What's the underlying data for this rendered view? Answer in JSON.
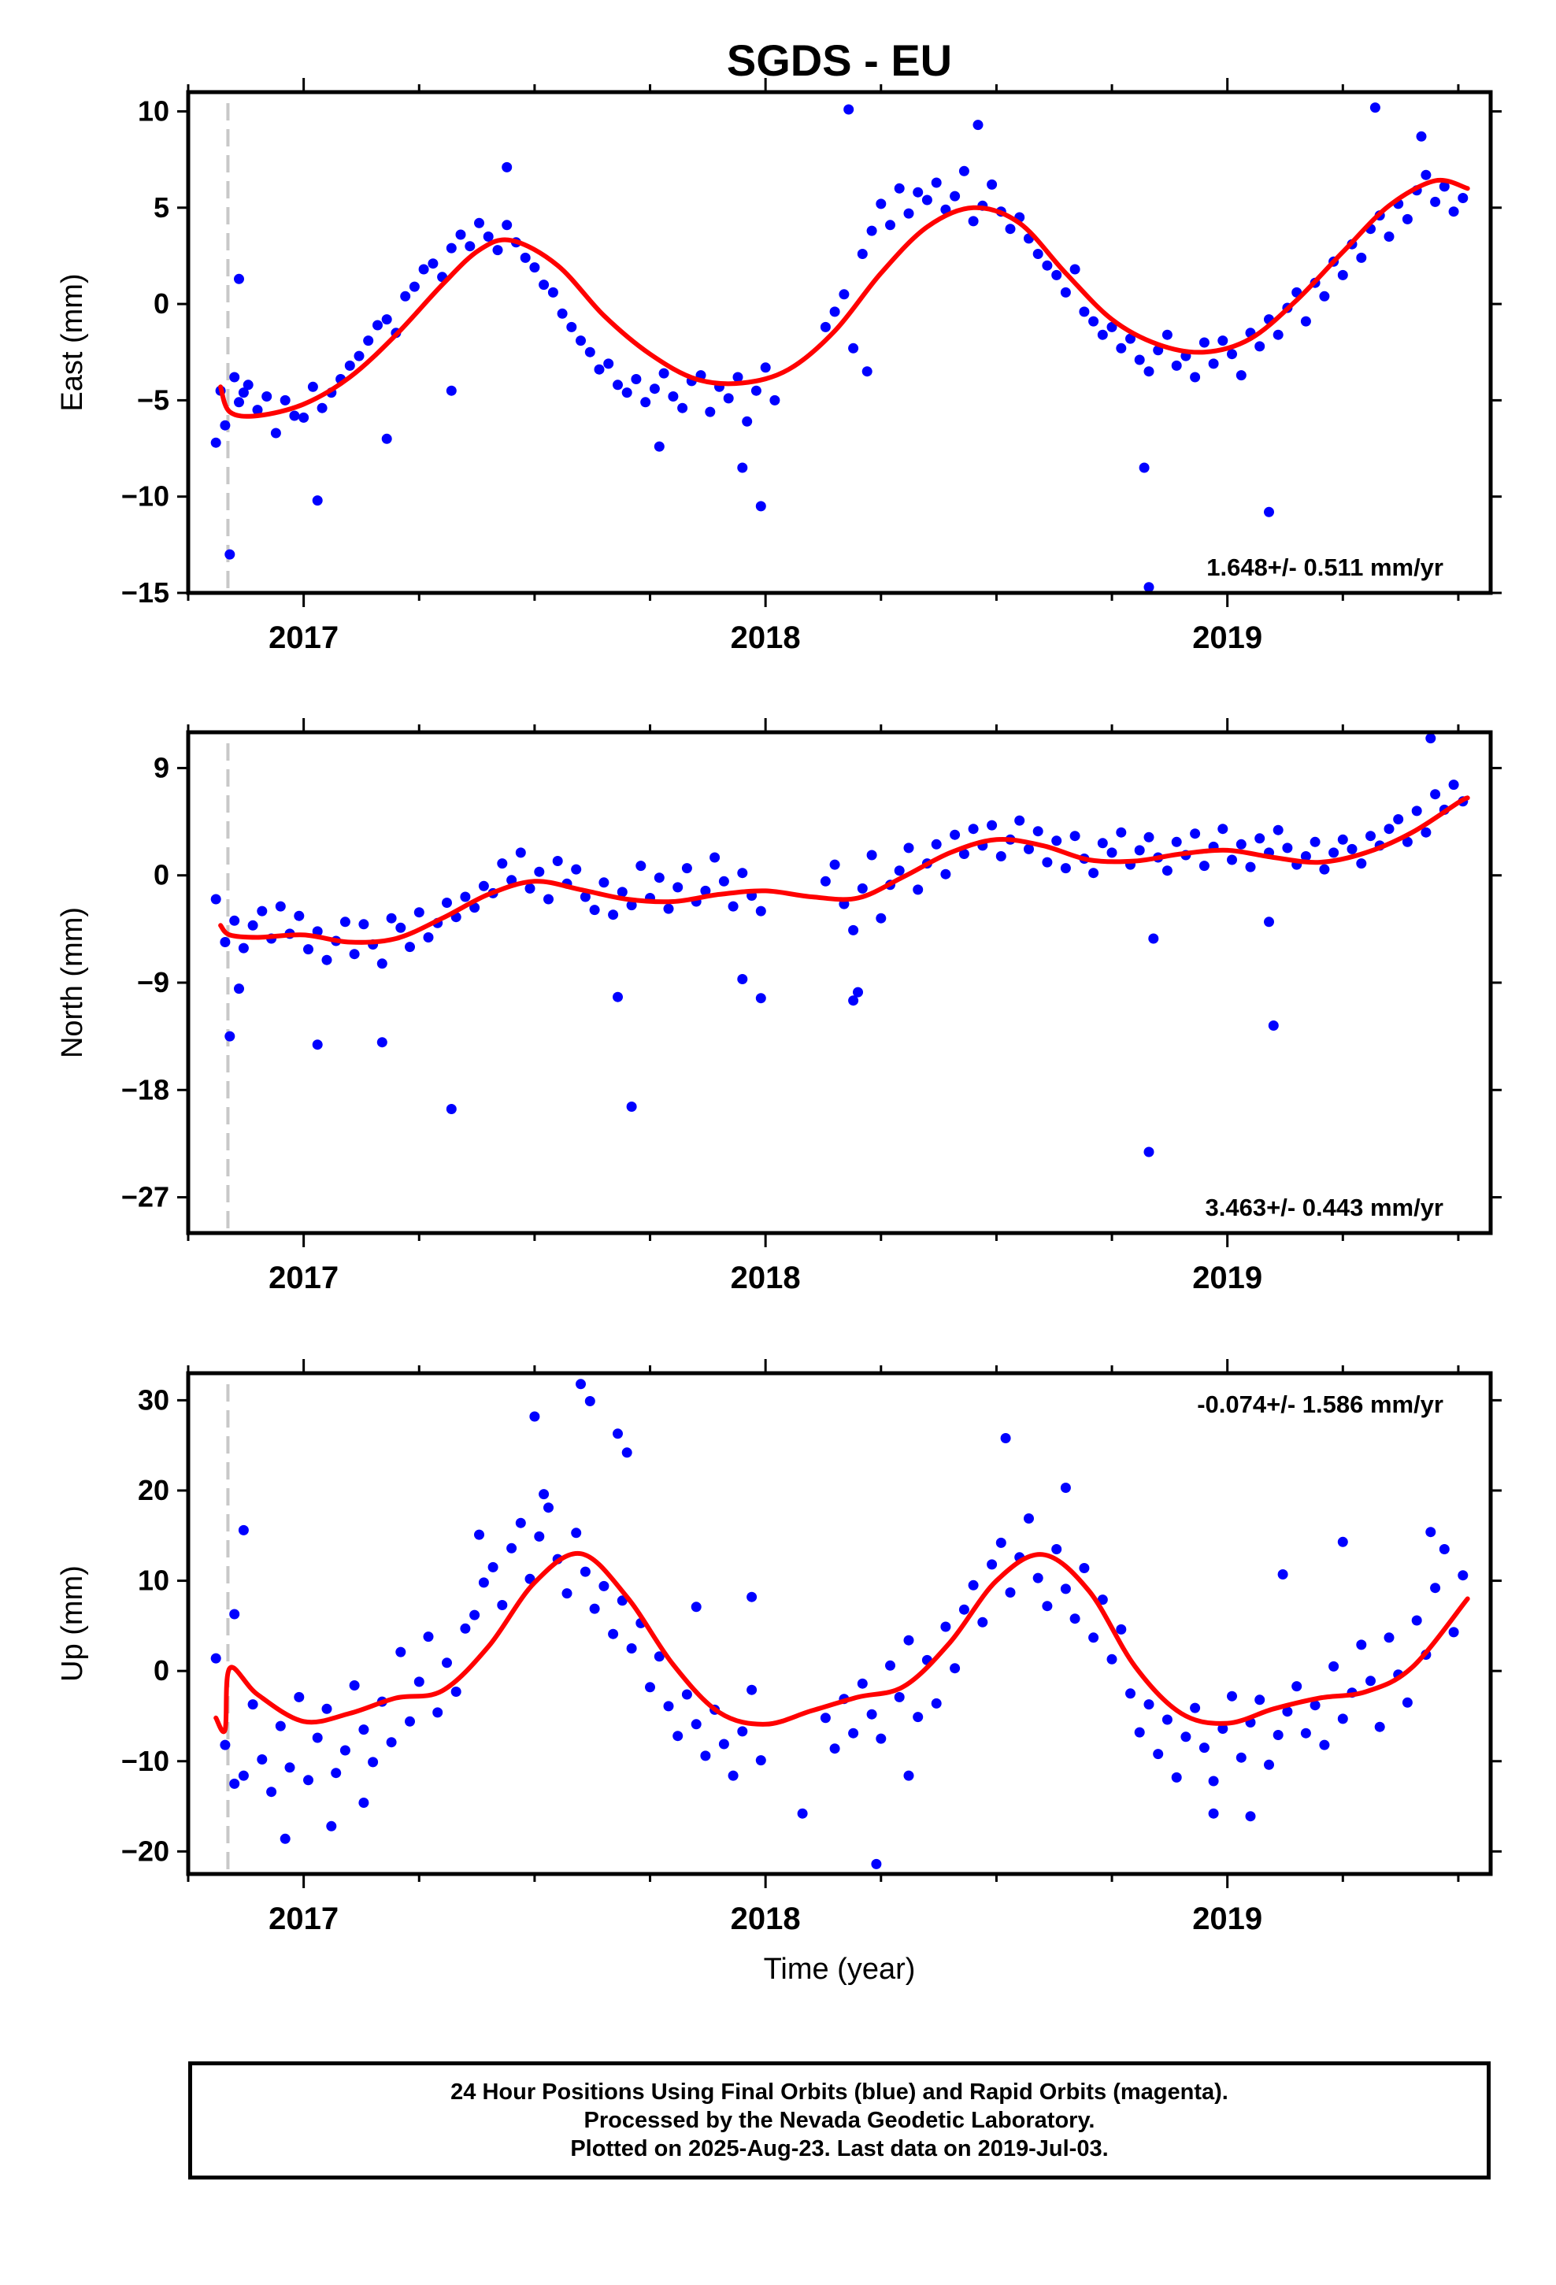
{
  "title": "SGDS - EU",
  "xlabel": "Time (year)",
  "footer": {
    "line1": "24 Hour Positions Using Final Orbits (blue) and Rapid Orbits (magenta).",
    "line2": "Processed by the Nevada Geodetic Laboratory.",
    "line3": "Plotted on 2025-Aug-23. Last data on 2019-Jul-03."
  },
  "colors": {
    "points": "#0000ff",
    "fit": "#ff0000",
    "marker_line": "#c8c8c8",
    "frame": "#000000"
  },
  "chart_data": [
    {
      "type": "scatter",
      "ylabel": "East (mm)",
      "ylim": [
        -15,
        11
      ],
      "yticks": [
        10,
        5,
        0,
        -5,
        -10,
        -15
      ],
      "ytick_labels": [
        "10",
        "5",
        "0",
        "−5",
        "−10",
        "−15"
      ],
      "xlim": [
        2016.75,
        2019.57
      ],
      "xticks": [
        2017,
        2018,
        2019
      ],
      "xtick_labels": [
        "2017",
        "2018",
        "2019"
      ],
      "rate_label": "1.648+/- 0.511 mm/yr",
      "rate_position": "bottom-right",
      "marker_x": 2016.836,
      "fit": {
        "name": "",
        "x": [
          2016.82,
          2016.84,
          2016.9,
          2017.0,
          2017.1,
          2017.2,
          2017.3,
          2017.38,
          2017.45,
          2017.55,
          2017.65,
          2017.75,
          2017.85,
          2017.95,
          2018.05,
          2018.15,
          2018.25,
          2018.35,
          2018.45,
          2018.55,
          2018.65,
          2018.75,
          2018.85,
          2018.95,
          2019.05,
          2019.15,
          2019.25,
          2019.35,
          2019.45,
          2019.52
        ],
        "y": [
          -4.3,
          -5.6,
          -5.8,
          -5.2,
          -3.8,
          -1.6,
          1.0,
          2.8,
          3.3,
          2.0,
          -0.6,
          -2.6,
          -3.9,
          -4.1,
          -3.4,
          -1.4,
          1.6,
          4.0,
          5.0,
          4.2,
          1.6,
          -0.8,
          -2.1,
          -2.5,
          -1.8,
          0.2,
          2.7,
          5.1,
          6.4,
          6.0
        ]
      },
      "points_x": [
        2016.81,
        2016.82,
        2016.83,
        2016.85,
        2016.86,
        2016.87,
        2016.88,
        2016.9,
        2016.92,
        2016.94,
        2016.96,
        2016.98,
        2017.0,
        2017.02,
        2017.04,
        2017.06,
        2017.08,
        2017.1,
        2017.12,
        2017.14,
        2017.16,
        2017.18,
        2017.2,
        2017.22,
        2017.24,
        2017.26,
        2017.28,
        2017.3,
        2017.32,
        2017.34,
        2017.36,
        2017.38,
        2017.4,
        2017.42,
        2017.44,
        2017.46,
        2017.48,
        2017.5,
        2017.52,
        2017.54,
        2017.56,
        2017.58,
        2017.6,
        2017.62,
        2017.64,
        2017.66,
        2017.68,
        2017.7,
        2017.72,
        2017.74,
        2017.76,
        2017.78,
        2017.8,
        2017.82,
        2017.84,
        2017.86,
        2017.88,
        2017.9,
        2017.92,
        2017.94,
        2017.96,
        2017.98,
        2018.0,
        2018.02,
        2018.13,
        2018.15,
        2018.17,
        2018.19,
        2018.21,
        2018.23,
        2018.25,
        2018.27,
        2018.29,
        2018.31,
        2018.33,
        2018.35,
        2018.37,
        2018.39,
        2018.41,
        2018.43,
        2018.45,
        2018.47,
        2018.49,
        2018.51,
        2018.53,
        2018.55,
        2018.57,
        2018.59,
        2018.61,
        2018.63,
        2018.65,
        2018.67,
        2018.69,
        2018.71,
        2018.73,
        2018.75,
        2018.77,
        2018.79,
        2018.81,
        2018.83,
        2018.85,
        2018.87,
        2018.89,
        2018.91,
        2018.93,
        2018.95,
        2018.97,
        2018.99,
        2019.01,
        2019.03,
        2019.05,
        2019.07,
        2019.09,
        2019.11,
        2019.13,
        2019.15,
        2019.17,
        2019.19,
        2019.21,
        2019.23,
        2019.25,
        2019.27,
        2019.29,
        2019.31,
        2019.33,
        2019.35,
        2019.37,
        2019.39,
        2019.41,
        2019.43,
        2019.45,
        2019.47,
        2019.49,
        2019.51,
        2016.84,
        2016.86,
        2017.03,
        2017.18,
        2017.32,
        2017.44,
        2017.77,
        2017.95,
        2017.99,
        2018.18,
        2018.22,
        2018.46,
        2018.82,
        2018.83,
        2019.09,
        2019.32,
        2019.42
      ],
      "points_y": [
        -7.2,
        -4.5,
        -6.3,
        -3.8,
        -5.1,
        -4.6,
        -4.2,
        -5.5,
        -4.8,
        -6.7,
        -5.0,
        -5.8,
        -5.9,
        -4.3,
        -5.4,
        -4.6,
        -3.9,
        -3.2,
        -2.7,
        -1.9,
        -1.1,
        -0.8,
        -1.5,
        0.4,
        0.9,
        1.8,
        2.1,
        1.4,
        2.9,
        3.6,
        3.0,
        4.2,
        3.5,
        2.8,
        4.1,
        3.2,
        2.4,
        1.9,
        1.0,
        0.6,
        -0.5,
        -1.2,
        -1.9,
        -2.5,
        -3.4,
        -3.1,
        -4.2,
        -4.6,
        -3.9,
        -5.1,
        -4.4,
        -3.6,
        -4.8,
        -5.4,
        -4.0,
        -3.7,
        -5.6,
        -4.3,
        -4.9,
        -3.8,
        -6.1,
        -4.5,
        -3.3,
        -5.0,
        -1.2,
        -0.4,
        0.5,
        -2.3,
        2.6,
        3.8,
        5.2,
        4.1,
        6.0,
        4.7,
        5.8,
        5.4,
        6.3,
        4.9,
        5.6,
        6.9,
        4.3,
        5.1,
        6.2,
        4.8,
        3.9,
        4.5,
        3.4,
        2.6,
        2.0,
        1.5,
        0.6,
        1.8,
        -0.4,
        -0.9,
        -1.6,
        -1.2,
        -2.3,
        -1.8,
        -2.9,
        -3.5,
        -2.4,
        -1.6,
        -3.2,
        -2.7,
        -3.8,
        -2.0,
        -3.1,
        -1.9,
        -2.6,
        -3.7,
        -1.5,
        -2.2,
        -0.8,
        -1.6,
        -0.2,
        0.6,
        -0.9,
        1.1,
        0.4,
        2.2,
        1.5,
        3.1,
        2.4,
        3.9,
        4.6,
        3.5,
        5.2,
        4.4,
        5.9,
        6.7,
        5.3,
        6.1,
        4.8,
        5.5,
        -13.0,
        1.3,
        -10.2,
        -7.0,
        -4.5,
        7.1,
        -7.4,
        -8.5,
        -10.5,
        10.1,
        -3.5,
        9.3,
        -8.5,
        -14.7,
        -10.8,
        10.2,
        8.7
      ]
    },
    {
      "type": "scatter",
      "ylabel": "North (mm)",
      "ylim": [
        -30,
        12
      ],
      "yticks": [
        9,
        0,
        -9,
        -18,
        -27
      ],
      "ytick_labels": [
        "9",
        "0",
        "−9",
        "−18",
        "−27"
      ],
      "xlim": [
        2016.75,
        2019.57
      ],
      "xticks": [
        2017,
        2018,
        2019
      ],
      "xtick_labels": [
        "2017",
        "2018",
        "2019"
      ],
      "rate_label": "3.463+/- 0.443 mm/yr",
      "rate_position": "bottom-right",
      "marker_x": 2016.836,
      "fit": {
        "name": "",
        "x": [
          2016.82,
          2016.84,
          2016.9,
          2017.0,
          2017.1,
          2017.2,
          2017.3,
          2017.4,
          2017.5,
          2017.6,
          2017.7,
          2017.8,
          2017.9,
          2018.0,
          2018.1,
          2018.2,
          2018.3,
          2018.4,
          2018.5,
          2018.6,
          2018.7,
          2018.8,
          2018.9,
          2019.0,
          2019.1,
          2019.2,
          2019.3,
          2019.4,
          2019.5,
          2019.52
        ],
        "y": [
          -4.2,
          -5.0,
          -5.2,
          -5.0,
          -5.6,
          -5.3,
          -3.6,
          -1.6,
          -0.5,
          -1.2,
          -2.0,
          -2.2,
          -1.6,
          -1.3,
          -1.8,
          -1.9,
          -0.1,
          1.9,
          3.0,
          2.5,
          1.3,
          1.2,
          1.8,
          2.1,
          1.5,
          1.1,
          1.9,
          3.6,
          6.1,
          6.5
        ]
      },
      "points_x": [
        2016.81,
        2016.83,
        2016.85,
        2016.87,
        2016.89,
        2016.91,
        2016.93,
        2016.95,
        2016.97,
        2016.99,
        2017.01,
        2017.03,
        2017.05,
        2017.07,
        2017.09,
        2017.11,
        2017.13,
        2017.15,
        2017.17,
        2017.19,
        2017.21,
        2017.23,
        2017.25,
        2017.27,
        2017.29,
        2017.31,
        2017.33,
        2017.35,
        2017.37,
        2017.39,
        2017.41,
        2017.43,
        2017.45,
        2017.47,
        2017.49,
        2017.51,
        2017.53,
        2017.55,
        2017.57,
        2017.59,
        2017.61,
        2017.63,
        2017.65,
        2017.67,
        2017.69,
        2017.71,
        2017.73,
        2017.75,
        2017.77,
        2017.79,
        2017.81,
        2017.83,
        2017.85,
        2017.87,
        2017.89,
        2017.91,
        2017.93,
        2017.95,
        2017.97,
        2017.99,
        2018.13,
        2018.15,
        2018.17,
        2018.19,
        2018.21,
        2018.23,
        2018.25,
        2018.27,
        2018.29,
        2018.31,
        2018.33,
        2018.35,
        2018.37,
        2018.39,
        2018.41,
        2018.43,
        2018.45,
        2018.47,
        2018.49,
        2018.51,
        2018.53,
        2018.55,
        2018.57,
        2018.59,
        2018.61,
        2018.63,
        2018.65,
        2018.67,
        2018.69,
        2018.71,
        2018.73,
        2018.75,
        2018.77,
        2018.79,
        2018.81,
        2018.83,
        2018.85,
        2018.87,
        2018.89,
        2018.91,
        2018.93,
        2018.95,
        2018.97,
        2018.99,
        2019.01,
        2019.03,
        2019.05,
        2019.07,
        2019.09,
        2019.11,
        2019.13,
        2019.15,
        2019.17,
        2019.19,
        2019.21,
        2019.23,
        2019.25,
        2019.27,
        2019.29,
        2019.31,
        2019.33,
        2019.35,
        2019.37,
        2019.39,
        2019.41,
        2019.43,
        2019.45,
        2019.47,
        2019.49,
        2019.51,
        2016.84,
        2016.86,
        2017.03,
        2017.17,
        2017.32,
        2017.68,
        2017.71,
        2017.95,
        2017.99,
        2018.19,
        2018.2,
        2018.83,
        2018.84,
        2019.09,
        2019.1,
        2019.44
      ],
      "points_y": [
        -2.0,
        -5.6,
        -3.8,
        -6.1,
        -4.2,
        -3.0,
        -5.3,
        -2.6,
        -4.9,
        -3.4,
        -6.2,
        -4.7,
        -7.1,
        -5.5,
        -3.9,
        -6.6,
        -4.1,
        -5.8,
        -7.4,
        -3.6,
        -4.4,
        -6.0,
        -3.1,
        -5.2,
        -4.0,
        -2.3,
        -3.5,
        -1.8,
        -2.7,
        -0.9,
        -1.5,
        1.0,
        -0.4,
        1.9,
        -1.1,
        0.3,
        -2.0,
        1.2,
        -0.7,
        0.5,
        -1.8,
        -2.9,
        -0.6,
        -3.3,
        -1.4,
        -2.5,
        0.8,
        -1.9,
        -0.2,
        -2.8,
        -1.0,
        0.6,
        -2.2,
        -1.3,
        1.5,
        -0.5,
        -2.6,
        0.2,
        -1.7,
        -3.0,
        -0.5,
        0.9,
        -2.4,
        -4.6,
        -1.1,
        1.7,
        -3.6,
        -0.8,
        0.4,
        2.3,
        -1.2,
        1.0,
        2.6,
        0.1,
        3.4,
        1.8,
        3.9,
        2.5,
        4.2,
        1.6,
        3.0,
        4.6,
        2.2,
        3.7,
        1.1,
        2.9,
        0.6,
        3.3,
        1.4,
        0.2,
        2.7,
        1.9,
        3.6,
        0.9,
        2.1,
        3.2,
        1.5,
        0.4,
        2.8,
        1.7,
        3.5,
        0.8,
        2.4,
        3.9,
        1.3,
        2.6,
        0.7,
        3.1,
        1.9,
        3.8,
        2.3,
        0.9,
        1.6,
        2.8,
        0.5,
        1.9,
        3.0,
        2.2,
        1.0,
        3.3,
        2.5,
        3.9,
        4.7,
        2.8,
        5.4,
        3.6,
        6.8,
        5.5,
        7.6,
        6.2,
        -13.5,
        -9.5,
        -14.2,
        -14.0,
        -19.6,
        -10.2,
        -19.4,
        -8.7,
        -10.3,
        -10.5,
        -9.8,
        -23.2,
        -5.3,
        -3.9,
        -12.6,
        11.5
      ]
    },
    {
      "type": "scatter",
      "ylabel": "Up (mm)",
      "ylim": [
        -22.5,
        33
      ],
      "yticks": [
        30,
        20,
        10,
        0,
        -10,
        -20
      ],
      "ytick_labels": [
        "30",
        "20",
        "10",
        "0",
        "−10",
        "−20"
      ],
      "xlim": [
        2016.75,
        2019.57
      ],
      "xticks": [
        2017,
        2018,
        2019
      ],
      "xtick_labels": [
        "2017",
        "2018",
        "2019"
      ],
      "rate_label": "-0.074+/- 1.586 mm/yr",
      "rate_position": "top-right",
      "marker_x": 2016.836,
      "fit": {
        "name": "",
        "x": [
          2016.81,
          2016.83,
          2016.84,
          2016.9,
          2017.0,
          2017.1,
          2017.2,
          2017.3,
          2017.4,
          2017.5,
          2017.6,
          2017.7,
          2017.8,
          2017.9,
          2018.0,
          2018.1,
          2018.2,
          2018.3,
          2018.4,
          2018.5,
          2018.6,
          2018.7,
          2018.8,
          2018.9,
          2019.0,
          2019.1,
          2019.2,
          2019.3,
          2019.4,
          2019.52
        ],
        "y": [
          -5.2,
          -6.5,
          0.3,
          -2.6,
          -5.6,
          -4.7,
          -3.0,
          -2.2,
          2.7,
          9.8,
          13.0,
          8.2,
          0.7,
          -4.6,
          -5.9,
          -4.4,
          -2.9,
          -1.7,
          3.2,
          10.0,
          12.9,
          8.9,
          0.5,
          -4.7,
          -5.8,
          -4.2,
          -3.0,
          -2.3,
          0.4,
          8.0
        ]
      },
      "points_x": [
        2016.81,
        2016.83,
        2016.85,
        2016.87,
        2016.89,
        2016.91,
        2016.93,
        2016.95,
        2016.97,
        2016.99,
        2017.01,
        2017.03,
        2017.05,
        2017.07,
        2017.09,
        2017.11,
        2017.13,
        2017.15,
        2017.17,
        2017.19,
        2017.21,
        2017.23,
        2017.25,
        2017.27,
        2017.29,
        2017.31,
        2017.33,
        2017.35,
        2017.37,
        2017.39,
        2017.41,
        2017.43,
        2017.45,
        2017.47,
        2017.49,
        2017.51,
        2017.53,
        2017.55,
        2017.57,
        2017.59,
        2017.61,
        2017.63,
        2017.65,
        2017.67,
        2017.69,
        2017.71,
        2017.73,
        2017.75,
        2017.77,
        2017.79,
        2017.81,
        2017.83,
        2017.85,
        2017.87,
        2017.89,
        2017.91,
        2017.93,
        2017.95,
        2017.97,
        2017.99,
        2018.13,
        2018.15,
        2018.17,
        2018.19,
        2018.21,
        2018.23,
        2018.25,
        2018.27,
        2018.29,
        2018.31,
        2018.33,
        2018.35,
        2018.37,
        2018.39,
        2018.41,
        2018.43,
        2018.45,
        2018.47,
        2018.49,
        2018.51,
        2018.53,
        2018.55,
        2018.57,
        2018.59,
        2018.61,
        2018.63,
        2018.65,
        2018.67,
        2018.69,
        2018.71,
        2018.73,
        2018.75,
        2018.77,
        2018.79,
        2018.81,
        2018.83,
        2018.85,
        2018.87,
        2018.89,
        2018.91,
        2018.93,
        2018.95,
        2018.97,
        2018.99,
        2019.01,
        2019.03,
        2019.05,
        2019.07,
        2019.09,
        2019.11,
        2019.13,
        2019.15,
        2019.17,
        2019.19,
        2019.21,
        2019.23,
        2019.25,
        2019.27,
        2019.29,
        2019.31,
        2019.33,
        2019.35,
        2019.37,
        2019.39,
        2019.41,
        2019.43,
        2019.45,
        2019.47,
        2019.49,
        2019.51,
        2016.85,
        2016.87,
        2016.96,
        2017.06,
        2017.13,
        2017.38,
        2017.5,
        2017.52,
        2017.6,
        2017.62,
        2017.68,
        2017.7,
        2017.85,
        2017.97,
        2018.08,
        2018.24,
        2018.31,
        2018.52,
        2018.65,
        2018.97,
        2019.05,
        2019.12,
        2019.25,
        2019.44
      ],
      "points_y": [
        1.4,
        -8.2,
        6.3,
        -11.6,
        -3.7,
        -9.8,
        -13.4,
        -6.1,
        -10.7,
        -2.9,
        -12.1,
        -7.4,
        -4.2,
        -11.3,
        -8.8,
        -1.6,
        -6.5,
        -10.1,
        -3.4,
        -7.9,
        2.1,
        -5.6,
        -1.2,
        3.8,
        -4.6,
        0.9,
        -2.3,
        4.7,
        6.2,
        9.8,
        11.5,
        7.3,
        13.6,
        16.4,
        10.2,
        14.9,
        18.1,
        12.4,
        8.6,
        15.3,
        11.0,
        6.9,
        9.4,
        4.1,
        7.8,
        2.5,
        5.3,
        -1.8,
        1.6,
        -3.9,
        -7.2,
        -2.6,
        -5.9,
        -9.4,
        -4.3,
        -8.1,
        -11.6,
        -6.7,
        -2.1,
        -9.9,
        -5.2,
        -8.6,
        -3.1,
        -6.9,
        -1.4,
        -4.8,
        -7.5,
        0.6,
        -2.9,
        3.4,
        -5.1,
        1.2,
        -3.6,
        4.9,
        0.3,
        6.8,
        9.5,
        5.4,
        11.8,
        14.2,
        8.7,
        12.6,
        16.9,
        10.3,
        7.2,
        13.5,
        9.1,
        5.8,
        11.4,
        3.7,
        7.9,
        1.3,
        4.6,
        -2.5,
        -6.8,
        -3.7,
        -9.2,
        -5.4,
        -11.8,
        -7.3,
        -4.1,
        -8.5,
        -12.2,
        -6.4,
        -2.8,
        -9.6,
        -5.7,
        -3.2,
        -10.4,
        -7.1,
        -4.5,
        -1.7,
        -6.9,
        -3.8,
        -8.2,
        0.5,
        -5.3,
        -2.4,
        2.9,
        -1.1,
        -6.2,
        3.7,
        -0.4,
        -3.5,
        5.6,
        1.8,
        9.2,
        13.5,
        4.3,
        10.6,
        -12.5,
        15.6,
        -18.6,
        -17.2,
        -14.6,
        15.1,
        28.2,
        19.6,
        31.8,
        29.9,
        26.3,
        24.2,
        7.1,
        8.2,
        -15.8,
        -21.4,
        -11.6,
        25.8,
        20.3,
        -15.8,
        -16.1,
        10.7,
        14.3,
        15.4
      ]
    }
  ]
}
